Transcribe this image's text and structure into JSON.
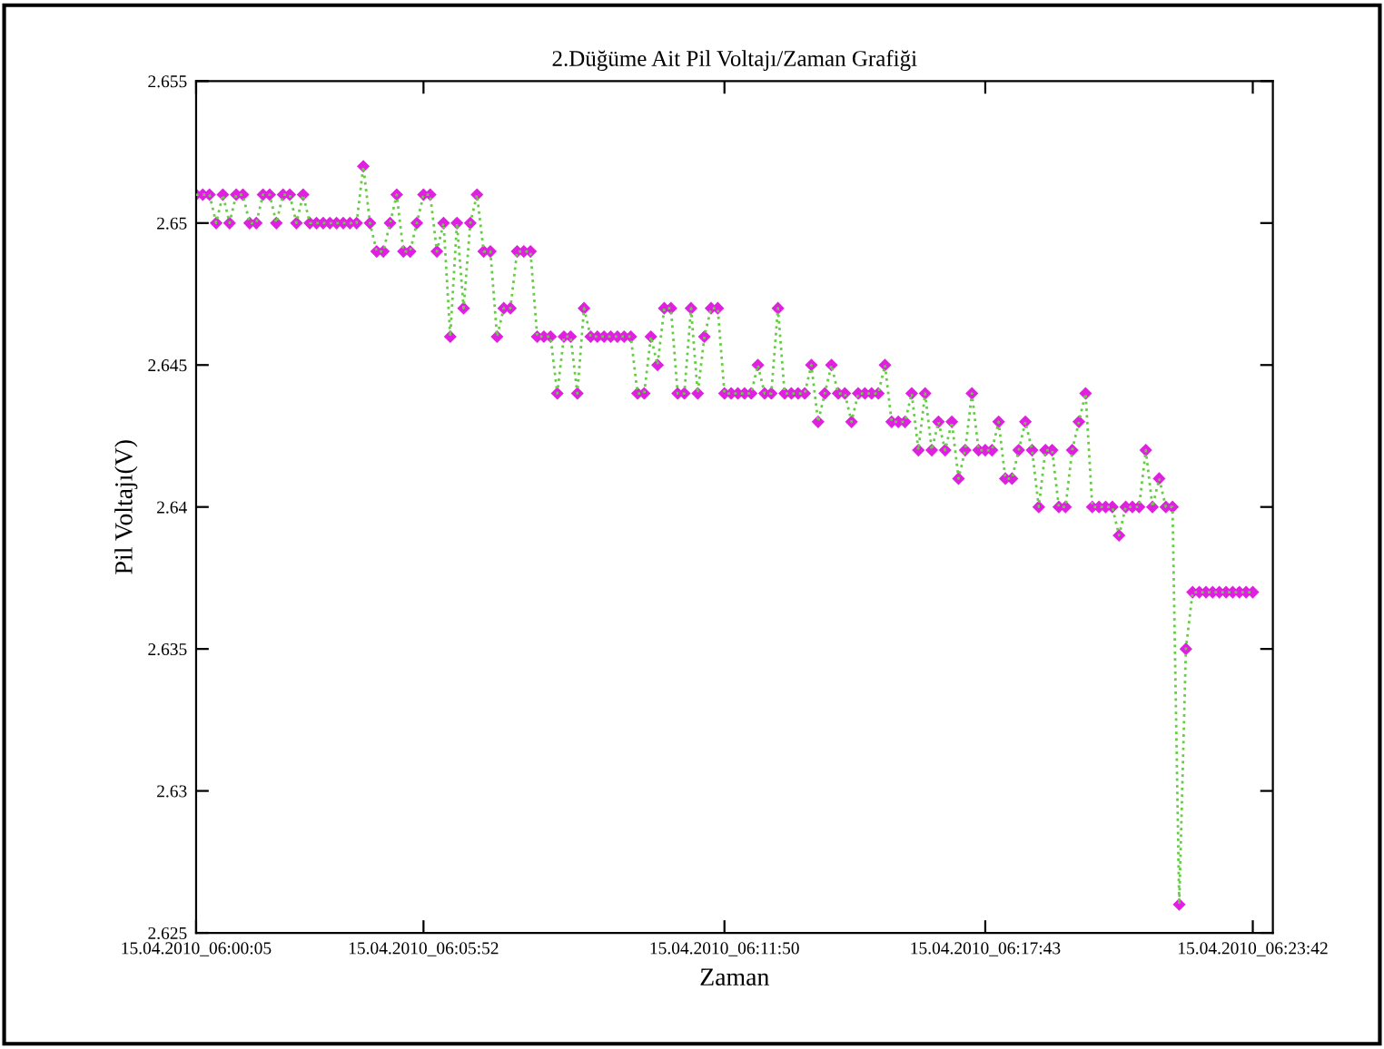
{
  "chart_data": {
    "type": "line",
    "title": "2.Düğüme Ait Pil Voltajı/Zaman Grafiği",
    "xlabel": "Zaman",
    "ylabel": "Pil Voltajı(V)",
    "marker": "diamond",
    "line_style": "dotted",
    "grid": false,
    "ylim": [
      2.625,
      2.655
    ],
    "categories": [
      "15.04.2010_06:00:05",
      null,
      null,
      null,
      null,
      null,
      null,
      null,
      null,
      null,
      null,
      null,
      null,
      null,
      null,
      null,
      null,
      null,
      null,
      null,
      null,
      null,
      null,
      null,
      null,
      null,
      null,
      null,
      null,
      null,
      null,
      null,
      null,
      null,
      "15.04.2010_06:05:52",
      null,
      null,
      null,
      null,
      null,
      null,
      null,
      null,
      null,
      null,
      null,
      null,
      null,
      null,
      null,
      null,
      null,
      null,
      null,
      null,
      null,
      null,
      null,
      null,
      null,
      null,
      null,
      null,
      null,
      null,
      null,
      null,
      null,
      null,
      null,
      null,
      null,
      null,
      null,
      null,
      null,
      null,
      null,
      null,
      "15.04.2010_06:11:50",
      null,
      null,
      null,
      null,
      null,
      null,
      null,
      null,
      null,
      null,
      null,
      null,
      null,
      null,
      null,
      null,
      null,
      null,
      null,
      null,
      null,
      null,
      null,
      null,
      null,
      null,
      null,
      null,
      null,
      null,
      null,
      null,
      null,
      null,
      null,
      null,
      null,
      null,
      "15.04.2010_06:17:43",
      null,
      null,
      null,
      null,
      null,
      null,
      null,
      null,
      null,
      null,
      null,
      null,
      null,
      null,
      null,
      null,
      null,
      null,
      null,
      null,
      null,
      null,
      null,
      null,
      null,
      null,
      null,
      null,
      null,
      null,
      null,
      null,
      null,
      null,
      null,
      null,
      null,
      null,
      null,
      "15.04.2010_06:23:42"
    ],
    "yticks": [
      2.625,
      2.63,
      2.635,
      2.64,
      2.645,
      2.65,
      2.655
    ],
    "series": [
      {
        "color": "#e020e0",
        "values": [
          2.651,
          2.651,
          2.651,
          2.65,
          2.651,
          2.65,
          2.651,
          2.651,
          2.65,
          2.65,
          2.651,
          2.651,
          2.65,
          2.651,
          2.651,
          2.65,
          2.651,
          2.65,
          2.65,
          2.65,
          2.65,
          2.65,
          2.65,
          2.65,
          2.65,
          2.652,
          2.65,
          2.649,
          2.649,
          2.65,
          2.651,
          2.649,
          2.649,
          2.65,
          2.651,
          2.651,
          2.649,
          2.65,
          2.646,
          2.65,
          2.647,
          2.65,
          2.651,
          2.649,
          2.649,
          2.646,
          2.647,
          2.647,
          2.649,
          2.649,
          2.649,
          2.646,
          2.646,
          2.646,
          2.644,
          2.646,
          2.646,
          2.644,
          2.647,
          2.646,
          2.646,
          2.646,
          2.646,
          2.646,
          2.646,
          2.646,
          2.644,
          2.644,
          2.646,
          2.645,
          2.647,
          2.647,
          2.644,
          2.644,
          2.647,
          2.644,
          2.646,
          2.647,
          2.647,
          2.644,
          2.644,
          2.644,
          2.644,
          2.644,
          2.645,
          2.644,
          2.644,
          2.647,
          2.644,
          2.644,
          2.644,
          2.644,
          2.645,
          2.643,
          2.644,
          2.645,
          2.644,
          2.644,
          2.643,
          2.644,
          2.644,
          2.644,
          2.644,
          2.645,
          2.643,
          2.643,
          2.643,
          2.644,
          2.642,
          2.644,
          2.642,
          2.643,
          2.642,
          2.643,
          2.641,
          2.642,
          2.644,
          2.642,
          2.642,
          2.642,
          2.643,
          2.641,
          2.641,
          2.642,
          2.643,
          2.642,
          2.64,
          2.642,
          2.642,
          2.64,
          2.64,
          2.642,
          2.643,
          2.644,
          2.64,
          2.64,
          2.64,
          2.64,
          2.639,
          2.64,
          2.64,
          2.64,
          2.642,
          2.64,
          2.641,
          2.64,
          2.64,
          2.626,
          2.635,
          2.637,
          2.637,
          2.637,
          2.637,
          2.637,
          2.637,
          2.637,
          2.637,
          2.637,
          2.637
        ]
      }
    ]
  }
}
